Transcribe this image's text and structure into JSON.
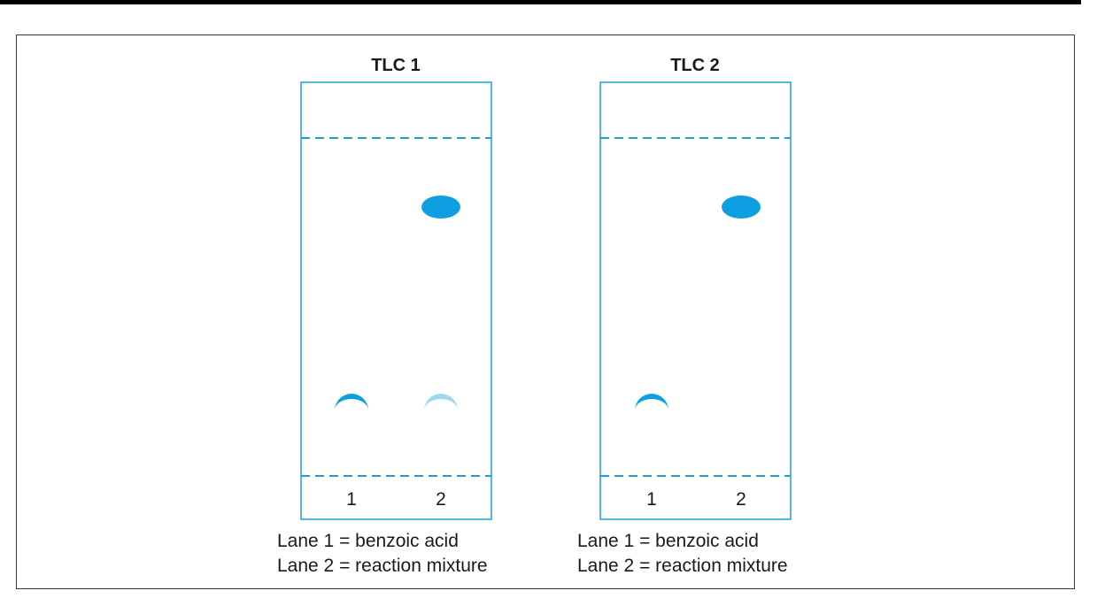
{
  "colors": {
    "plate_border": "#1a9fd6",
    "dashed_line": "#1a9fd6",
    "spot_dark": "#0d9fe0",
    "spot_light": "#9fd6f0",
    "text": "#1a1a1a"
  },
  "plates": [
    {
      "title": "TLC 1",
      "lanes": [
        "1",
        "2"
      ],
      "legend": [
        "Lane 1 = benzoic acid",
        "Lane 2 = reaction mixture"
      ],
      "spots": [
        {
          "lane": 1,
          "shape": "crescent",
          "shade": "dark",
          "position": "near-origin"
        },
        {
          "lane": 2,
          "shape": "crescent",
          "shade": "light",
          "position": "near-origin"
        },
        {
          "lane": 2,
          "shape": "oval",
          "shade": "dark",
          "position": "upper"
        }
      ]
    },
    {
      "title": "TLC 2",
      "lanes": [
        "1",
        "2"
      ],
      "legend": [
        "Lane 1 = benzoic acid",
        "Lane 2 = reaction mixture"
      ],
      "spots": [
        {
          "lane": 1,
          "shape": "crescent",
          "shade": "dark",
          "position": "near-origin"
        },
        {
          "lane": 2,
          "shape": "oval",
          "shade": "dark",
          "position": "upper"
        }
      ]
    }
  ]
}
